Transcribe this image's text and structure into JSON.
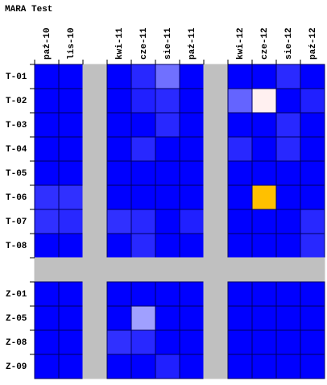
{
  "title": "MARA Test",
  "columns": [
    "paź-10",
    "lis-10",
    null,
    "kwi-11",
    "cze-11",
    "sie-11",
    "paź-11",
    null,
    "kwi-12",
    "cze-12",
    "sie-12",
    "paź-12"
  ],
  "rows": [
    "T-01",
    "T-02",
    "T-03",
    "T-04",
    "T-05",
    "T-06",
    "T-07",
    "T-08",
    null,
    "Z-01",
    "Z-05",
    "Z-08",
    "Z-09"
  ],
  "cells": [
    [
      "#0000ff",
      "#0000ff",
      "#c0c0c0",
      "#0000ff",
      "#2828ff",
      "#7070ff",
      "#0000ff",
      "#c0c0c0",
      "#0000ff",
      "#0000ff",
      "#2a2aff",
      "#0000ff"
    ],
    [
      "#0000ff",
      "#0000ff",
      "#c0c0c0",
      "#0000ff",
      "#2020ff",
      "#2a2aff",
      "#0000ff",
      "#c0c0c0",
      "#6464ff",
      "#fff0f0",
      "#0000ff",
      "#2020ff"
    ],
    [
      "#0000ff",
      "#0000ff",
      "#c0c0c0",
      "#0000ff",
      "#0000ff",
      "#2828ff",
      "#0000ff",
      "#c0c0c0",
      "#0000ff",
      "#0000ff",
      "#2828ff",
      "#0000ff"
    ],
    [
      "#0000ff",
      "#0000ff",
      "#c0c0c0",
      "#0000ff",
      "#2828ff",
      "#0000ff",
      "#0000ff",
      "#c0c0c0",
      "#2828ff",
      "#0000ff",
      "#2828ff",
      "#0000ff"
    ],
    [
      "#0000ff",
      "#0000ff",
      "#c0c0c0",
      "#0000ff",
      "#0000ff",
      "#0000ff",
      "#0000ff",
      "#c0c0c0",
      "#0000ff",
      "#0000ff",
      "#0000ff",
      "#0000ff"
    ],
    [
      "#3030ff",
      "#3030ff",
      "#c0c0c0",
      "#0000ff",
      "#0000ff",
      "#0000ff",
      "#0000ff",
      "#c0c0c0",
      "#0000ff",
      "#ffc000",
      "#0000ff",
      "#0000ff"
    ],
    [
      "#3030ff",
      "#2828ff",
      "#c0c0c0",
      "#3030ff",
      "#2828ff",
      "#0000ff",
      "#2020ff",
      "#c0c0c0",
      "#0000ff",
      "#0000ff",
      "#0000ff",
      "#2828ff"
    ],
    [
      "#0000ff",
      "#0000ff",
      "#c0c0c0",
      "#0000ff",
      "#2828ff",
      "#0000ff",
      "#0000ff",
      "#c0c0c0",
      "#0000ff",
      "#0000ff",
      "#0000ff",
      "#2828ff"
    ],
    [
      "#c0c0c0",
      "#c0c0c0",
      "#c0c0c0",
      "#c0c0c0",
      "#c0c0c0",
      "#c0c0c0",
      "#c0c0c0",
      "#c0c0c0",
      "#c0c0c0",
      "#c0c0c0",
      "#c0c0c0",
      "#c0c0c0"
    ],
    [
      "#0000ff",
      "#0000ff",
      "#c0c0c0",
      "#0000ff",
      "#0000ff",
      "#0000ff",
      "#0000ff",
      "#c0c0c0",
      "#0000ff",
      "#0000ff",
      "#0000ff",
      "#0000ff"
    ],
    [
      "#0000ff",
      "#0000ff",
      "#c0c0c0",
      "#0000ff",
      "#a0a0ff",
      "#0000ff",
      "#0000ff",
      "#c0c0c0",
      "#0000ff",
      "#0000ff",
      "#0000ff",
      "#0000ff"
    ],
    [
      "#0000ff",
      "#0000ff",
      "#c0c0c0",
      "#3030ff",
      "#2828ff",
      "#0000ff",
      "#0000ff",
      "#c0c0c0",
      "#0000ff",
      "#0000ff",
      "#0000ff",
      "#0000ff"
    ],
    [
      "#0000ff",
      "#0000ff",
      "#c0c0c0",
      "#0000ff",
      "#0000ff",
      "#2020ff",
      "#0000ff",
      "#c0c0c0",
      "#0000ff",
      "#0000ff",
      "#0000ff",
      "#0000ff"
    ]
  ]
}
